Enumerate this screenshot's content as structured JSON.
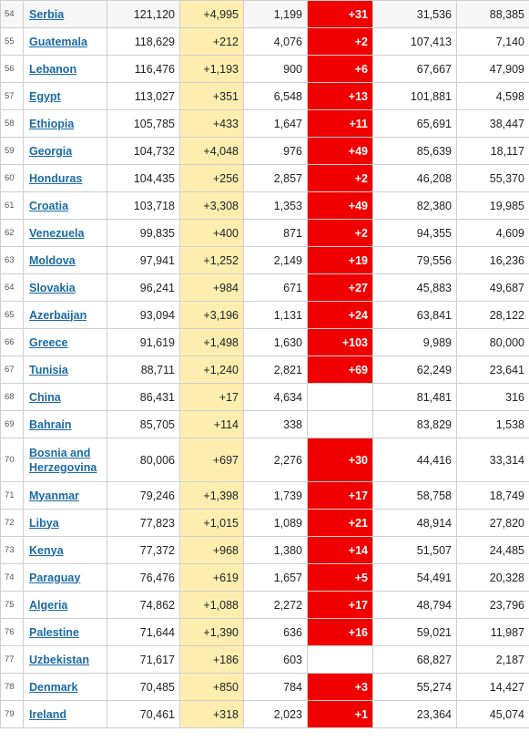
{
  "colors": {
    "new_cases_bg": "#fdeeb0",
    "new_deaths_bg": "#f00000",
    "link": "#1a6aa6",
    "border": "#cfcfcf"
  },
  "rows": [
    {
      "rank": "54",
      "country": "Serbia",
      "total_cases": "121,120",
      "new_cases": "+4,995",
      "total_deaths": "1,199",
      "new_deaths": "+31",
      "total_recovered": "31,536",
      "active_cases": "88,385"
    },
    {
      "rank": "55",
      "country": "Guatemala",
      "total_cases": "118,629",
      "new_cases": "+212",
      "total_deaths": "4,076",
      "new_deaths": "+2",
      "total_recovered": "107,413",
      "active_cases": "7,140"
    },
    {
      "rank": "56",
      "country": "Lebanon",
      "total_cases": "116,476",
      "new_cases": "+1,193",
      "total_deaths": "900",
      "new_deaths": "+6",
      "total_recovered": "67,667",
      "active_cases": "47,909"
    },
    {
      "rank": "57",
      "country": "Egypt",
      "total_cases": "113,027",
      "new_cases": "+351",
      "total_deaths": "6,548",
      "new_deaths": "+13",
      "total_recovered": "101,881",
      "active_cases": "4,598"
    },
    {
      "rank": "58",
      "country": "Ethiopia",
      "total_cases": "105,785",
      "new_cases": "+433",
      "total_deaths": "1,647",
      "new_deaths": "+11",
      "total_recovered": "65,691",
      "active_cases": "38,447"
    },
    {
      "rank": "59",
      "country": "Georgia",
      "total_cases": "104,732",
      "new_cases": "+4,048",
      "total_deaths": "976",
      "new_deaths": "+49",
      "total_recovered": "85,639",
      "active_cases": "18,117"
    },
    {
      "rank": "60",
      "country": "Honduras",
      "total_cases": "104,435",
      "new_cases": "+256",
      "total_deaths": "2,857",
      "new_deaths": "+2",
      "total_recovered": "46,208",
      "active_cases": "55,370"
    },
    {
      "rank": "61",
      "country": "Croatia",
      "total_cases": "103,718",
      "new_cases": "+3,308",
      "total_deaths": "1,353",
      "new_deaths": "+49",
      "total_recovered": "82,380",
      "active_cases": "19,985"
    },
    {
      "rank": "62",
      "country": "Venezuela",
      "total_cases": "99,835",
      "new_cases": "+400",
      "total_deaths": "871",
      "new_deaths": "+2",
      "total_recovered": "94,355",
      "active_cases": "4,609"
    },
    {
      "rank": "63",
      "country": "Moldova",
      "total_cases": "97,941",
      "new_cases": "+1,252",
      "total_deaths": "2,149",
      "new_deaths": "+19",
      "total_recovered": "79,556",
      "active_cases": "16,236"
    },
    {
      "rank": "64",
      "country": "Slovakia",
      "total_cases": "96,241",
      "new_cases": "+984",
      "total_deaths": "671",
      "new_deaths": "+27",
      "total_recovered": "45,883",
      "active_cases": "49,687"
    },
    {
      "rank": "65",
      "country": "Azerbaijan",
      "total_cases": "93,094",
      "new_cases": "+3,196",
      "total_deaths": "1,131",
      "new_deaths": "+24",
      "total_recovered": "63,841",
      "active_cases": "28,122"
    },
    {
      "rank": "66",
      "country": "Greece",
      "total_cases": "91,619",
      "new_cases": "+1,498",
      "total_deaths": "1,630",
      "new_deaths": "+103",
      "total_recovered": "9,989",
      "active_cases": "80,000"
    },
    {
      "rank": "67",
      "country": "Tunisia",
      "total_cases": "88,711",
      "new_cases": "+1,240",
      "total_deaths": "2,821",
      "new_deaths": "+69",
      "total_recovered": "62,249",
      "active_cases": "23,641"
    },
    {
      "rank": "68",
      "country": "China",
      "total_cases": "86,431",
      "new_cases": "+17",
      "total_deaths": "4,634",
      "new_deaths": "",
      "total_recovered": "81,481",
      "active_cases": "316"
    },
    {
      "rank": "69",
      "country": "Bahrain",
      "total_cases": "85,705",
      "new_cases": "+114",
      "total_deaths": "338",
      "new_deaths": "",
      "total_recovered": "83,829",
      "active_cases": "1,538"
    },
    {
      "rank": "70",
      "country": "Bosnia and Herzegovina",
      "total_cases": "80,006",
      "new_cases": "+697",
      "total_deaths": "2,276",
      "new_deaths": "+30",
      "total_recovered": "44,416",
      "active_cases": "33,314"
    },
    {
      "rank": "71",
      "country": "Myanmar",
      "total_cases": "79,246",
      "new_cases": "+1,398",
      "total_deaths": "1,739",
      "new_deaths": "+17",
      "total_recovered": "58,758",
      "active_cases": "18,749"
    },
    {
      "rank": "72",
      "country": "Libya",
      "total_cases": "77,823",
      "new_cases": "+1,015",
      "total_deaths": "1,089",
      "new_deaths": "+21",
      "total_recovered": "48,914",
      "active_cases": "27,820"
    },
    {
      "rank": "73",
      "country": "Kenya",
      "total_cases": "77,372",
      "new_cases": "+968",
      "total_deaths": "1,380",
      "new_deaths": "+14",
      "total_recovered": "51,507",
      "active_cases": "24,485"
    },
    {
      "rank": "74",
      "country": "Paraguay",
      "total_cases": "76,476",
      "new_cases": "+619",
      "total_deaths": "1,657",
      "new_deaths": "+5",
      "total_recovered": "54,491",
      "active_cases": "20,328"
    },
    {
      "rank": "75",
      "country": "Algeria",
      "total_cases": "74,862",
      "new_cases": "+1,088",
      "total_deaths": "2,272",
      "new_deaths": "+17",
      "total_recovered": "48,794",
      "active_cases": "23,796"
    },
    {
      "rank": "76",
      "country": "Palestine",
      "total_cases": "71,644",
      "new_cases": "+1,390",
      "total_deaths": "636",
      "new_deaths": "+16",
      "total_recovered": "59,021",
      "active_cases": "11,987"
    },
    {
      "rank": "77",
      "country": "Uzbekistan",
      "total_cases": "71,617",
      "new_cases": "+186",
      "total_deaths": "603",
      "new_deaths": "",
      "total_recovered": "68,827",
      "active_cases": "2,187"
    },
    {
      "rank": "78",
      "country": "Denmark",
      "total_cases": "70,485",
      "new_cases": "+850",
      "total_deaths": "784",
      "new_deaths": "+3",
      "total_recovered": "55,274",
      "active_cases": "14,427"
    },
    {
      "rank": "79",
      "country": "Ireland",
      "total_cases": "70,461",
      "new_cases": "+318",
      "total_deaths": "2,023",
      "new_deaths": "+1",
      "total_recovered": "23,364",
      "active_cases": "45,074"
    }
  ]
}
